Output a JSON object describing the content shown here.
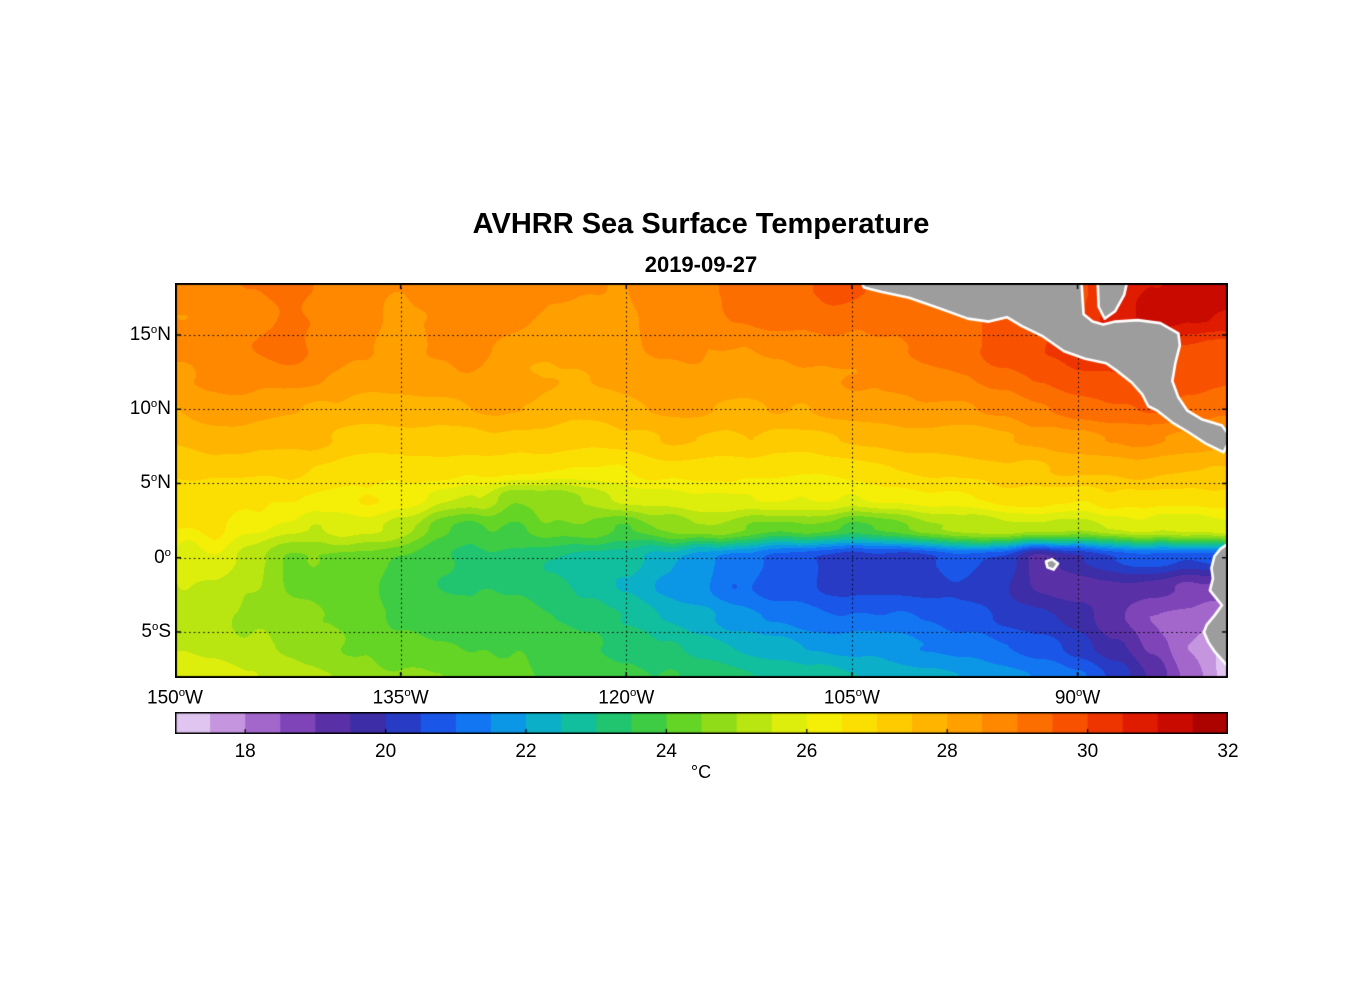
{
  "background": "#ffffff",
  "chart_data": {
    "type": "heatmap",
    "title": "AVHRR Sea Surface Temperature",
    "subtitle": "2019-09-27",
    "variable": "sea surface temperature",
    "lon_range": [
      -150,
      -80
    ],
    "lat_range": [
      -8.1,
      18.5
    ],
    "axes": {
      "deg_symbol": "o",
      "x_ticks": [
        {
          "v": -150,
          "num": "150",
          "hem": "W"
        },
        {
          "v": -135,
          "num": "135",
          "hem": "W"
        },
        {
          "v": -120,
          "num": "120",
          "hem": "W"
        },
        {
          "v": -105,
          "num": "105",
          "hem": "W"
        },
        {
          "v": -90,
          "num": "90",
          "hem": "W"
        }
      ],
      "y_ticks": [
        {
          "v": 15,
          "num": "15",
          "hem": "N"
        },
        {
          "v": 10,
          "num": "10",
          "hem": "N"
        },
        {
          "v": 5,
          "num": "5",
          "hem": "N"
        },
        {
          "v": 0,
          "num": "0",
          "hem": ""
        },
        {
          "v": -5,
          "num": "5",
          "hem": "S"
        }
      ]
    },
    "colorbar": {
      "min": 17,
      "max": 32,
      "step": 0.5,
      "ticks": [
        18,
        20,
        22,
        24,
        26,
        28,
        30,
        32
      ],
      "unit": "°C"
    },
    "colormap_stops": [
      [
        17.0,
        "#ead9f5"
      ],
      [
        17.5,
        "#d4b0e8"
      ],
      [
        18.0,
        "#b57bd6"
      ],
      [
        18.5,
        "#9152c2"
      ],
      [
        19.0,
        "#6a35ad"
      ],
      [
        19.5,
        "#4a2a9e"
      ],
      [
        20.0,
        "#2f2fb0"
      ],
      [
        20.5,
        "#1f47d8"
      ],
      [
        21.0,
        "#1565f5"
      ],
      [
        21.5,
        "#0e86f0"
      ],
      [
        22.0,
        "#0aa5dc"
      ],
      [
        22.5,
        "#0cbab4"
      ],
      [
        23.0,
        "#15c285"
      ],
      [
        23.5,
        "#2cc85a"
      ],
      [
        24.0,
        "#4ed02e"
      ],
      [
        24.5,
        "#7ad81c"
      ],
      [
        25.0,
        "#a5e014"
      ],
      [
        25.5,
        "#cdea0e"
      ],
      [
        26.0,
        "#eef20a"
      ],
      [
        26.5,
        "#fbe903"
      ],
      [
        27.0,
        "#fdd400"
      ],
      [
        27.5,
        "#febf00"
      ],
      [
        28.0,
        "#ffaa00"
      ],
      [
        28.5,
        "#ff9400"
      ],
      [
        29.0,
        "#ff7c00"
      ],
      [
        29.5,
        "#fb6000"
      ],
      [
        30.0,
        "#f44400"
      ],
      [
        30.5,
        "#e82600"
      ],
      [
        31.0,
        "#d50f00"
      ],
      [
        31.5,
        "#bb0500"
      ],
      [
        32.0,
        "#9e0000"
      ]
    ],
    "grid": {
      "lons": [
        -150,
        -147.5,
        -145,
        -142.5,
        -140,
        -137.5,
        -135,
        -132.5,
        -130,
        -127.5,
        -125,
        -122.5,
        -120,
        -117.5,
        -115,
        -112.5,
        -110,
        -107.5,
        -105,
        -102.5,
        -100,
        -97.5,
        -95,
        -92.5,
        -90,
        -87.5,
        -85,
        -82.5,
        -80
      ],
      "lats": [
        18,
        16,
        14,
        12,
        10,
        8,
        6,
        4,
        2,
        0,
        -2,
        -4,
        -6,
        -8
      ],
      "sst_c": [
        [
          28.8,
          28.8,
          29.0,
          29.2,
          29.0,
          28.8,
          28.6,
          28.8,
          29.0,
          28.8,
          28.6,
          28.5,
          28.5,
          28.6,
          28.8,
          29.0,
          29.2,
          29.3,
          29.5,
          29.6,
          29.5,
          29.4,
          29.6,
          29.8,
          29.8,
          30.6,
          31.0,
          31.0,
          31.0
        ],
        [
          28.6,
          28.7,
          28.9,
          29.1,
          29.0,
          28.7,
          28.5,
          28.6,
          28.8,
          28.6,
          28.4,
          28.3,
          28.4,
          28.5,
          28.6,
          28.8,
          29.0,
          29.0,
          29.2,
          29.3,
          29.4,
          29.3,
          29.8,
          29.9,
          30.0,
          30.8,
          31.2,
          31.0,
          30.8
        ],
        [
          28.5,
          28.6,
          28.8,
          29.0,
          28.8,
          28.6,
          28.4,
          28.4,
          28.6,
          28.5,
          28.3,
          28.2,
          28.3,
          28.4,
          28.5,
          28.6,
          28.8,
          28.8,
          28.9,
          29.0,
          29.2,
          29.2,
          29.6,
          29.9,
          30.2,
          30.4,
          30.2,
          30.0,
          29.8
        ],
        [
          28.3,
          28.4,
          28.5,
          28.6,
          28.5,
          28.4,
          28.2,
          28.2,
          28.3,
          28.2,
          28.1,
          28.0,
          28.1,
          28.2,
          28.3,
          28.4,
          28.5,
          28.5,
          28.6,
          28.7,
          28.8,
          28.9,
          29.2,
          29.5,
          29.8,
          30.0,
          30.0,
          29.8,
          29.6
        ],
        [
          28.0,
          28.1,
          28.2,
          28.2,
          28.1,
          28.0,
          27.9,
          27.8,
          27.9,
          27.8,
          27.7,
          27.7,
          27.8,
          27.9,
          28.0,
          28.0,
          28.1,
          28.1,
          28.2,
          28.3,
          28.4,
          28.5,
          28.7,
          29.0,
          29.2,
          29.4,
          29.5,
          29.3,
          29.0
        ],
        [
          27.6,
          27.7,
          27.7,
          27.7,
          27.6,
          27.5,
          27.4,
          27.3,
          27.3,
          27.2,
          27.2,
          27.2,
          27.3,
          27.4,
          27.4,
          27.5,
          27.5,
          27.5,
          27.6,
          27.6,
          27.7,
          27.8,
          27.9,
          28.1,
          28.3,
          28.5,
          28.6,
          28.4,
          28.2
        ],
        [
          27.2,
          27.2,
          27.1,
          27.0,
          26.9,
          26.8,
          26.8,
          26.7,
          26.6,
          26.5,
          26.5,
          26.6,
          26.6,
          26.7,
          26.7,
          26.8,
          26.8,
          26.8,
          26.9,
          26.9,
          27.0,
          27.1,
          27.2,
          27.3,
          27.4,
          27.6,
          27.7,
          27.6,
          27.5
        ],
        [
          26.8,
          26.7,
          26.6,
          26.5,
          26.4,
          26.3,
          26.2,
          26.0,
          25.6,
          24.4,
          24.6,
          25.2,
          25.8,
          25.6,
          25.8,
          26.0,
          26.2,
          26.3,
          26.2,
          26.3,
          26.4,
          26.5,
          26.6,
          26.6,
          26.6,
          26.8,
          27.0,
          27.0,
          27.0
        ],
        [
          26.2,
          26.1,
          26.0,
          25.8,
          25.6,
          25.4,
          25.2,
          24.8,
          24.2,
          23.8,
          24.2,
          24.6,
          24.2,
          24.6,
          25.0,
          24.6,
          24.2,
          24.6,
          24.4,
          24.8,
          25.2,
          25.4,
          25.6,
          25.4,
          25.2,
          25.6,
          26.0,
          26.2,
          26.4
        ],
        [
          25.8,
          25.6,
          25.2,
          24.9,
          24.6,
          24.4,
          24.2,
          24.0,
          23.8,
          23.6,
          23.4,
          23.2,
          23.0,
          22.4,
          21.8,
          21.4,
          21.0,
          20.8,
          20.6,
          20.5,
          20.4,
          20.3,
          20.2,
          19.6,
          20.0,
          20.4,
          20.6,
          20.8,
          21.0
        ],
        [
          25.5,
          25.3,
          25.0,
          24.7,
          24.4,
          24.2,
          24.0,
          23.8,
          23.6,
          23.4,
          23.2,
          22.9,
          22.5,
          22.0,
          21.6,
          21.2,
          20.9,
          20.7,
          20.5,
          20.4,
          20.3,
          20.1,
          19.9,
          19.6,
          19.4,
          19.3,
          19.2,
          19.0,
          18.8
        ],
        [
          25.4,
          25.2,
          25.0,
          24.8,
          24.5,
          24.3,
          24.1,
          23.9,
          23.7,
          23.6,
          23.4,
          23.2,
          22.9,
          22.5,
          22.2,
          21.9,
          21.6,
          21.3,
          21.1,
          20.9,
          20.8,
          20.6,
          20.4,
          20.2,
          19.9,
          19.2,
          18.6,
          18.2,
          18.0
        ],
        [
          25.5,
          25.3,
          25.1,
          24.9,
          24.7,
          24.5,
          24.3,
          24.1,
          24.0,
          23.8,
          23.7,
          23.5,
          23.3,
          23.0,
          22.8,
          22.5,
          22.3,
          22.0,
          21.8,
          21.6,
          21.4,
          21.2,
          21.0,
          20.7,
          20.3,
          19.6,
          18.8,
          18.0,
          17.5
        ],
        [
          25.8,
          25.6,
          25.4,
          25.2,
          25.0,
          24.8,
          24.6,
          24.4,
          24.2,
          24.1,
          23.9,
          23.8,
          23.6,
          23.4,
          23.2,
          23.0,
          22.8,
          22.6,
          22.4,
          22.2,
          22.0,
          21.8,
          21.6,
          21.3,
          20.9,
          20.2,
          19.4,
          18.4,
          17.4
        ]
      ]
    },
    "land": {
      "fill": "#9d9d9d",
      "outline": "#ffffff",
      "polygons": {
        "central_america": [
          [
            -104.8,
            19.5
          ],
          [
            -104.2,
            18.2
          ],
          [
            -103.0,
            17.9
          ],
          [
            -101.2,
            17.5
          ],
          [
            -99.2,
            16.8
          ],
          [
            -97.3,
            16.1
          ],
          [
            -95.9,
            15.9
          ],
          [
            -94.7,
            16.2
          ],
          [
            -93.7,
            15.6
          ],
          [
            -92.3,
            14.9
          ],
          [
            -90.9,
            13.9
          ],
          [
            -89.5,
            13.4
          ],
          [
            -88.1,
            13.1
          ],
          [
            -87.4,
            12.6
          ],
          [
            -86.4,
            11.8
          ],
          [
            -85.7,
            11.0
          ],
          [
            -85.3,
            10.2
          ],
          [
            -84.7,
            9.9
          ],
          [
            -83.7,
            9.1
          ],
          [
            -82.7,
            8.5
          ],
          [
            -81.5,
            7.7
          ],
          [
            -80.3,
            7.1
          ],
          [
            -79.8,
            8.1
          ],
          [
            -80.4,
            8.9
          ],
          [
            -81.7,
            9.3
          ],
          [
            -82.7,
            9.9
          ],
          [
            -83.3,
            10.8
          ],
          [
            -83.7,
            11.9
          ],
          [
            -83.5,
            13.1
          ],
          [
            -83.2,
            14.3
          ],
          [
            -83.3,
            15.1
          ],
          [
            -84.5,
            15.8
          ],
          [
            -86.0,
            16.0
          ],
          [
            -87.5,
            15.9
          ],
          [
            -88.3,
            15.7
          ],
          [
            -89.0,
            15.9
          ],
          [
            -89.6,
            16.4
          ],
          [
            -89.8,
            19.5
          ]
        ],
        "yucatan_belize": [
          [
            -88.7,
            19.5
          ],
          [
            -88.6,
            16.9
          ],
          [
            -88.2,
            16.1
          ],
          [
            -87.5,
            16.6
          ],
          [
            -86.9,
            17.7
          ],
          [
            -86.5,
            19.5
          ]
        ],
        "south_america": [
          [
            -79.6,
            1.2
          ],
          [
            -80.5,
            0.6
          ],
          [
            -80.9,
            0.1
          ],
          [
            -81.1,
            -0.7
          ],
          [
            -81.0,
            -1.4
          ],
          [
            -81.2,
            -2.2
          ],
          [
            -80.8,
            -2.7
          ],
          [
            -80.4,
            -3.2
          ],
          [
            -80.9,
            -3.9
          ],
          [
            -81.4,
            -4.5
          ],
          [
            -81.6,
            -5.0
          ],
          [
            -81.3,
            -5.7
          ],
          [
            -80.9,
            -6.3
          ],
          [
            -80.2,
            -7.1
          ],
          [
            -79.4,
            -8.1
          ],
          [
            -78.9,
            -9.0
          ],
          [
            -77.5,
            -9.0
          ],
          [
            -77.5,
            1.2
          ]
        ],
        "galapagos": [
          [
            -92.1,
            -0.25
          ],
          [
            -91.7,
            -0.1
          ],
          [
            -91.3,
            -0.4
          ],
          [
            -91.6,
            -0.8
          ],
          [
            -92.0,
            -0.65
          ]
        ]
      }
    }
  }
}
